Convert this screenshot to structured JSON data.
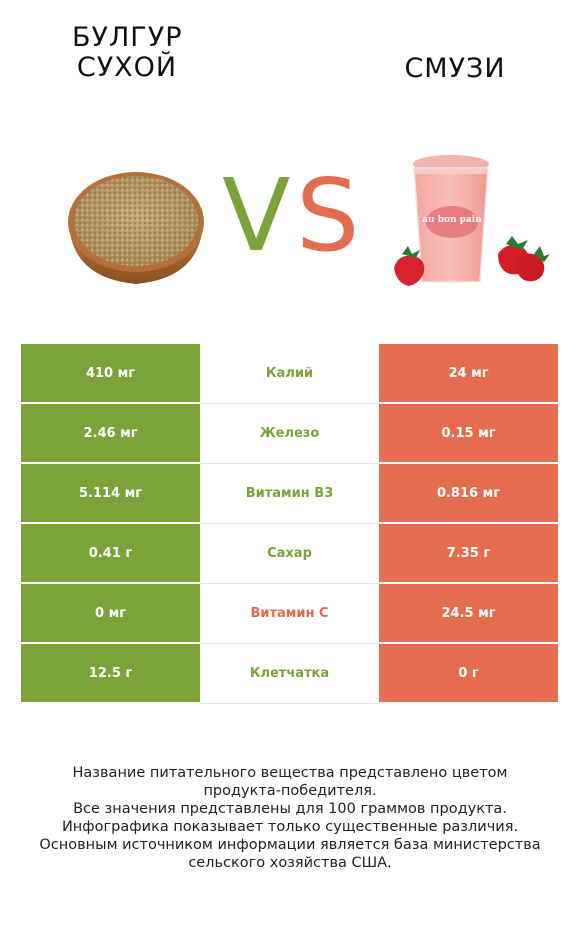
{
  "header": {
    "left_title_line1": "БУЛГУР",
    "left_title_line2": "СУХОЙ",
    "right_title": "СМУЗИ",
    "vs_v": "V",
    "vs_s": "S"
  },
  "colors": {
    "green": "#7aa33a",
    "red": "#e46d4f"
  },
  "cup_text": "au bon pain",
  "rows": [
    {
      "left": "410 мг",
      "label": "Калий",
      "right": "24 мг",
      "winner": "left"
    },
    {
      "left": "2.46 мг",
      "label": "Железо",
      "right": "0.15 мг",
      "winner": "left"
    },
    {
      "left": "5.114 мг",
      "label": "Витамин B3",
      "right": "0.816 мг",
      "winner": "left"
    },
    {
      "left": "0.41 г",
      "label": "Сахар",
      "right": "7.35 г",
      "winner": "left"
    },
    {
      "left": "0 мг",
      "label": "Витамин C",
      "right": "24.5 мг",
      "winner": "right"
    },
    {
      "left": "12.5 г",
      "label": "Клетчатка",
      "right": "0 г",
      "winner": "left"
    }
  ],
  "footer": {
    "line1": "Название питательного вещества представлено цветом",
    "line2": "продукта-победителя.",
    "line3": "Все значения представлены для 100 граммов продукта.",
    "line4": "Инфографика показывает только существенные различия.",
    "line5": "Основным источником информации является база министерства",
    "line6": "сельского хозяйства США."
  }
}
